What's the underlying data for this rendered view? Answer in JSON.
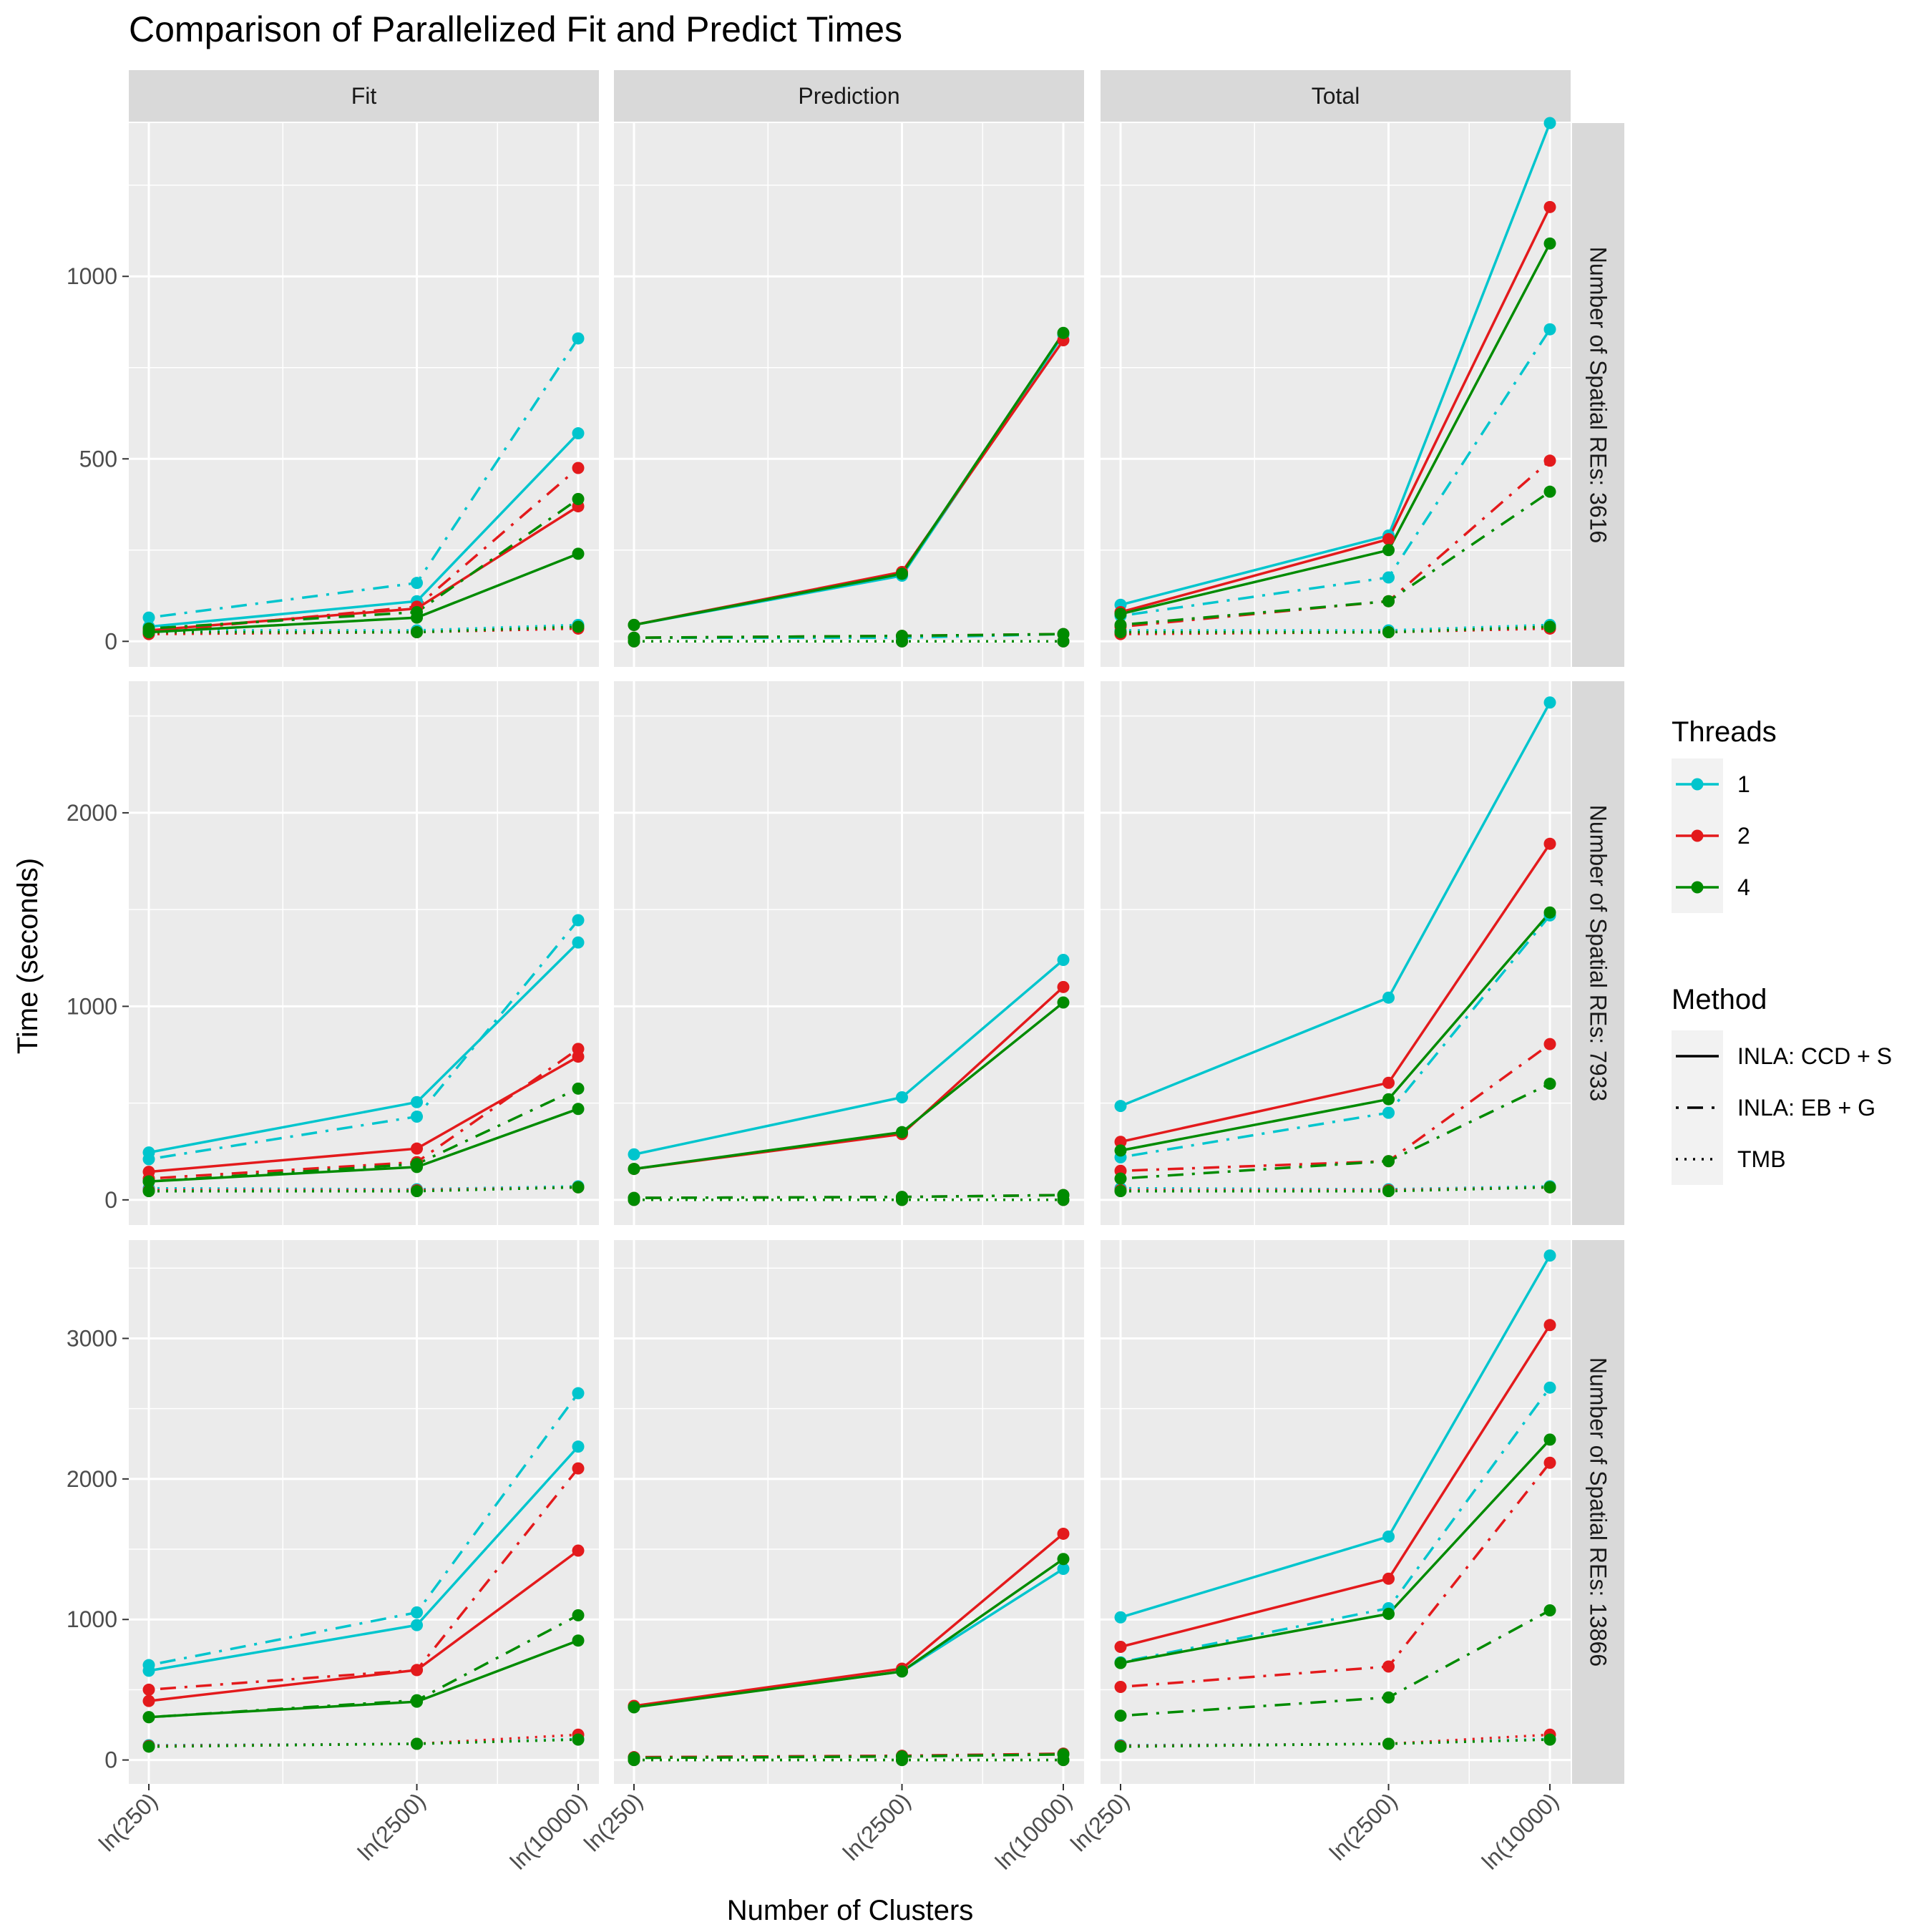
{
  "chart_data": {
    "type": "line",
    "title": "Comparison of Parallelized Fit and Predict Times",
    "xlabel": "Number of Clusters",
    "ylabel": "Time (seconds)",
    "x_scale": "log",
    "x": [
      250,
      2500,
      10000
    ],
    "x_tick_labels": [
      "ln(250)",
      "ln(2500)",
      "ln(10000)"
    ],
    "colors": {
      "1": "#00c5cd",
      "2": "#e31a1c",
      "4": "#008b00"
    },
    "legend": {
      "threads_title": "Threads",
      "threads": [
        "1",
        "2",
        "4"
      ],
      "method_title": "Method",
      "methods": [
        {
          "label": "INLA: CCD + S",
          "dash": "solid"
        },
        {
          "label": "INLA: EB + G",
          "dash": "dotdash"
        },
        {
          "label": "TMB",
          "dash": "dotted"
        }
      ],
      "position": "right"
    },
    "columns": [
      "Fit",
      "Prediction",
      "Total"
    ],
    "rows": [
      {
        "label": "Number of Spatial REs: 3616",
        "ylim": [
          -70,
          1420
        ],
        "yticks": [
          0,
          500,
          1000
        ],
        "panels": {
          "Fit": [
            {
              "threads": "1",
              "method": "INLA: CCD + S",
              "values": [
                40,
                110,
                570
              ]
            },
            {
              "threads": "1",
              "method": "INLA: EB + G",
              "values": [
                65,
                160,
                830
              ]
            },
            {
              "threads": "1",
              "method": "TMB",
              "values": [
                30,
                30,
                45
              ]
            },
            {
              "threads": "2",
              "method": "INLA: CCD + S",
              "values": [
                30,
                90,
                370
              ]
            },
            {
              "threads": "2",
              "method": "INLA: EB + G",
              "values": [
                25,
                95,
                475
              ]
            },
            {
              "threads": "2",
              "method": "TMB",
              "values": [
                20,
                25,
                35
              ]
            },
            {
              "threads": "4",
              "method": "INLA: CCD + S",
              "values": [
                25,
                65,
                240
              ]
            },
            {
              "threads": "4",
              "method": "INLA: EB + G",
              "values": [
                35,
                80,
                390
              ]
            },
            {
              "threads": "4",
              "method": "TMB",
              "values": [
                25,
                25,
                40
              ]
            }
          ],
          "Prediction": [
            {
              "threads": "1",
              "method": "INLA: CCD + S",
              "values": [
                45,
                180,
                840
              ]
            },
            {
              "threads": "1",
              "method": "INLA: EB + G",
              "values": [
                10,
                10,
                20
              ]
            },
            {
              "threads": "1",
              "method": "TMB",
              "values": [
                0,
                0,
                0
              ]
            },
            {
              "threads": "2",
              "method": "INLA: CCD + S",
              "values": [
                45,
                190,
                825
              ]
            },
            {
              "threads": "2",
              "method": "INLA: EB + G",
              "values": [
                10,
                15,
                20
              ]
            },
            {
              "threads": "2",
              "method": "TMB",
              "values": [
                0,
                0,
                0
              ]
            },
            {
              "threads": "4",
              "method": "INLA: CCD + S",
              "values": [
                45,
                185,
                845
              ]
            },
            {
              "threads": "4",
              "method": "INLA: EB + G",
              "values": [
                10,
                15,
                20
              ]
            },
            {
              "threads": "4",
              "method": "TMB",
              "values": [
                0,
                0,
                0
              ]
            }
          ],
          "Total": [
            {
              "threads": "1",
              "method": "INLA: CCD + S",
              "values": [
                100,
                290,
                1420
              ]
            },
            {
              "threads": "1",
              "method": "INLA: EB + G",
              "values": [
                70,
                175,
                855
              ]
            },
            {
              "threads": "1",
              "method": "TMB",
              "values": [
                30,
                30,
                45
              ]
            },
            {
              "threads": "2",
              "method": "INLA: CCD + S",
              "values": [
                80,
                280,
                1190
              ]
            },
            {
              "threads": "2",
              "method": "INLA: EB + G",
              "values": [
                40,
                110,
                495
              ]
            },
            {
              "threads": "2",
              "method": "TMB",
              "values": [
                20,
                25,
                35
              ]
            },
            {
              "threads": "4",
              "method": "INLA: CCD + S",
              "values": [
                75,
                250,
                1090
              ]
            },
            {
              "threads": "4",
              "method": "INLA: EB + G",
              "values": [
                45,
                110,
                410
              ]
            },
            {
              "threads": "4",
              "method": "TMB",
              "values": [
                25,
                25,
                40
              ]
            }
          ]
        }
      },
      {
        "label": "Number of Spatial REs: 7933",
        "ylim": [
          -130,
          2680
        ],
        "yticks": [
          0,
          1000,
          2000
        ],
        "panels": {
          "Fit": [
            {
              "threads": "1",
              "method": "INLA: CCD + S",
              "values": [
                245,
                505,
                1330
              ]
            },
            {
              "threads": "1",
              "method": "INLA: EB + G",
              "values": [
                210,
                430,
                1445
              ]
            },
            {
              "threads": "1",
              "method": "TMB",
              "values": [
                60,
                55,
                70
              ]
            },
            {
              "threads": "2",
              "method": "INLA: CCD + S",
              "values": [
                145,
                265,
                740
              ]
            },
            {
              "threads": "2",
              "method": "INLA: EB + G",
              "values": [
                110,
                195,
                780
              ]
            },
            {
              "threads": "2",
              "method": "TMB",
              "values": [
                50,
                50,
                65
              ]
            },
            {
              "threads": "4",
              "method": "INLA: CCD + S",
              "values": [
                95,
                170,
                470
              ]
            },
            {
              "threads": "4",
              "method": "INLA: EB + G",
              "values": [
                95,
                185,
                575
              ]
            },
            {
              "threads": "4",
              "method": "TMB",
              "values": [
                45,
                45,
                65
              ]
            }
          ],
          "Prediction": [
            {
              "threads": "1",
              "method": "INLA: CCD + S",
              "values": [
                235,
                530,
                1240
              ]
            },
            {
              "threads": "1",
              "method": "INLA: EB + G",
              "values": [
                10,
                15,
                25
              ]
            },
            {
              "threads": "1",
              "method": "TMB",
              "values": [
                0,
                0,
                0
              ]
            },
            {
              "threads": "2",
              "method": "INLA: CCD + S",
              "values": [
                160,
                340,
                1100
              ]
            },
            {
              "threads": "2",
              "method": "INLA: EB + G",
              "values": [
                10,
                15,
                25
              ]
            },
            {
              "threads": "2",
              "method": "TMB",
              "values": [
                0,
                0,
                0
              ]
            },
            {
              "threads": "4",
              "method": "INLA: CCD + S",
              "values": [
                160,
                350,
                1020
              ]
            },
            {
              "threads": "4",
              "method": "INLA: EB + G",
              "values": [
                10,
                15,
                25
              ]
            },
            {
              "threads": "4",
              "method": "TMB",
              "values": [
                0,
                0,
                0
              ]
            }
          ],
          "Total": [
            {
              "threads": "1",
              "method": "INLA: CCD + S",
              "values": [
                485,
                1045,
                2570
              ]
            },
            {
              "threads": "1",
              "method": "INLA: EB + G",
              "values": [
                220,
                450,
                1470
              ]
            },
            {
              "threads": "1",
              "method": "TMB",
              "values": [
                60,
                55,
                70
              ]
            },
            {
              "threads": "2",
              "method": "INLA: CCD + S",
              "values": [
                300,
                605,
                1840
              ]
            },
            {
              "threads": "2",
              "method": "INLA: EB + G",
              "values": [
                150,
                200,
                805
              ]
            },
            {
              "threads": "2",
              "method": "TMB",
              "values": [
                50,
                50,
                65
              ]
            },
            {
              "threads": "4",
              "method": "INLA: CCD + S",
              "values": [
                255,
                520,
                1485
              ]
            },
            {
              "threads": "4",
              "method": "INLA: EB + G",
              "values": [
                110,
                200,
                600
              ]
            },
            {
              "threads": "4",
              "method": "TMB",
              "values": [
                45,
                45,
                65
              ]
            }
          ]
        }
      },
      {
        "label": "Number of Spatial REs: 13866",
        "ylim": [
          -170,
          3700
        ],
        "yticks": [
          0,
          1000,
          2000,
          3000
        ],
        "panels": {
          "Fit": [
            {
              "threads": "1",
              "method": "INLA: CCD + S",
              "values": [
                635,
                960,
                2230
              ]
            },
            {
              "threads": "1",
              "method": "INLA: EB + G",
              "values": [
                675,
                1050,
                2610
              ]
            },
            {
              "threads": "1",
              "method": "TMB",
              "values": [
                105,
                115,
                150
              ]
            },
            {
              "threads": "2",
              "method": "INLA: CCD + S",
              "values": [
                420,
                640,
                1490
              ]
            },
            {
              "threads": "2",
              "method": "INLA: EB + G",
              "values": [
                500,
                640,
                2075
              ]
            },
            {
              "threads": "2",
              "method": "TMB",
              "values": [
                100,
                115,
                180
              ]
            },
            {
              "threads": "4",
              "method": "INLA: CCD + S",
              "values": [
                305,
                415,
                850
              ]
            },
            {
              "threads": "4",
              "method": "INLA: EB + G",
              "values": [
                305,
                425,
                1030
              ]
            },
            {
              "threads": "4",
              "method": "TMB",
              "values": [
                95,
                115,
                145
              ]
            }
          ],
          "Prediction": [
            {
              "threads": "1",
              "method": "INLA: CCD + S",
              "values": [
                380,
                630,
                1360
              ]
            },
            {
              "threads": "1",
              "method": "INLA: EB + G",
              "values": [
                20,
                30,
                45
              ]
            },
            {
              "threads": "1",
              "method": "TMB",
              "values": [
                0,
                0,
                0
              ]
            },
            {
              "threads": "2",
              "method": "INLA: CCD + S",
              "values": [
                385,
                650,
                1610
              ]
            },
            {
              "threads": "2",
              "method": "INLA: EB + G",
              "values": [
                20,
                30,
                45
              ]
            },
            {
              "threads": "2",
              "method": "TMB",
              "values": [
                0,
                0,
                0
              ]
            },
            {
              "threads": "4",
              "method": "INLA: CCD + S",
              "values": [
                375,
                630,
                1430
              ]
            },
            {
              "threads": "4",
              "method": "INLA: EB + G",
              "values": [
                15,
                25,
                40
              ]
            },
            {
              "threads": "4",
              "method": "TMB",
              "values": [
                0,
                0,
                0
              ]
            }
          ],
          "Total": [
            {
              "threads": "1",
              "method": "INLA: CCD + S",
              "values": [
                1015,
                1590,
                3590
              ]
            },
            {
              "threads": "1",
              "method": "INLA: EB + G",
              "values": [
                695,
                1080,
                2650
              ]
            },
            {
              "threads": "1",
              "method": "TMB",
              "values": [
                105,
                115,
                150
              ]
            },
            {
              "threads": "2",
              "method": "INLA: CCD + S",
              "values": [
                805,
                1290,
                3095
              ]
            },
            {
              "threads": "2",
              "method": "INLA: EB + G",
              "values": [
                520,
                665,
                2115
              ]
            },
            {
              "threads": "2",
              "method": "TMB",
              "values": [
                100,
                115,
                180
              ]
            },
            {
              "threads": "4",
              "method": "INLA: CCD + S",
              "values": [
                690,
                1040,
                2280
              ]
            },
            {
              "threads": "4",
              "method": "INLA: EB + G",
              "values": [
                315,
                445,
                1065
              ]
            },
            {
              "threads": "4",
              "method": "TMB",
              "values": [
                95,
                115,
                145
              ]
            }
          ]
        }
      }
    ]
  }
}
